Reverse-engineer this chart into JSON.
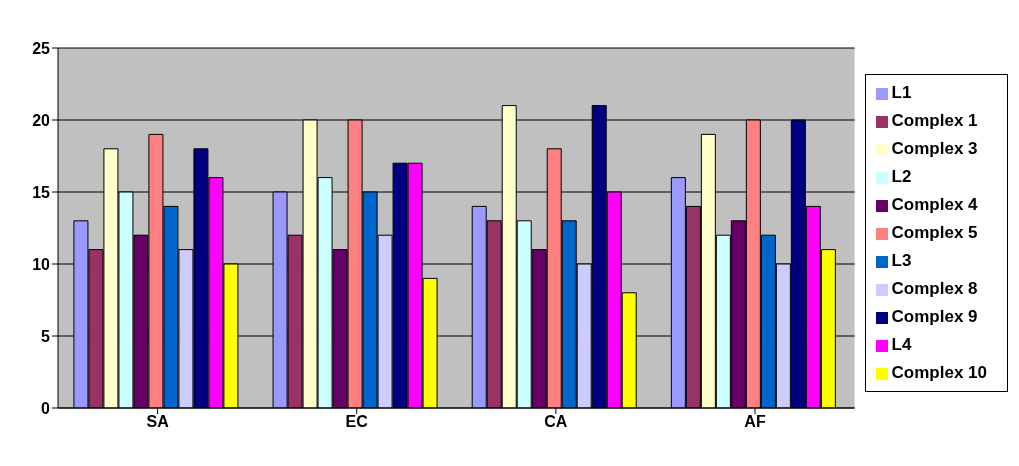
{
  "chart_data": {
    "type": "bar",
    "categories": [
      "SA",
      "EC",
      "CA",
      "AF"
    ],
    "series": [
      {
        "name": "L1",
        "color": "#9999ff",
        "values": [
          13,
          15,
          14,
          16
        ]
      },
      {
        "name": "Complex 1",
        "color": "#993366",
        "values": [
          11,
          12,
          13,
          14
        ]
      },
      {
        "name": "Complex 3",
        "color": "#ffffcc",
        "values": [
          18,
          20,
          21,
          19
        ]
      },
      {
        "name": "L2",
        "color": "#ccffff",
        "values": [
          15,
          16,
          13,
          12
        ]
      },
      {
        "name": "Complex 4",
        "color": "#660066",
        "values": [
          12,
          11,
          11,
          13
        ]
      },
      {
        "name": "Complex 5",
        "color": "#ff8080",
        "values": [
          19,
          20,
          18,
          20
        ]
      },
      {
        "name": "L3",
        "color": "#0066cc",
        "values": [
          14,
          15,
          13,
          12
        ]
      },
      {
        "name": "Complex 8",
        "color": "#ccccff",
        "values": [
          11,
          12,
          10,
          10
        ]
      },
      {
        "name": "Complex 9",
        "color": "#000080",
        "values": [
          18,
          17,
          21,
          20
        ]
      },
      {
        "name": "L4",
        "color": "#ff00ff",
        "values": [
          16,
          17,
          15,
          14
        ]
      },
      {
        "name": "Complex 10",
        "color": "#ffff00",
        "values": [
          10,
          9,
          8,
          11
        ]
      }
    ],
    "ylim": [
      0,
      25
    ],
    "yticks": [
      0,
      5,
      10,
      15,
      20,
      25
    ],
    "grid": "y",
    "legend": "right"
  }
}
